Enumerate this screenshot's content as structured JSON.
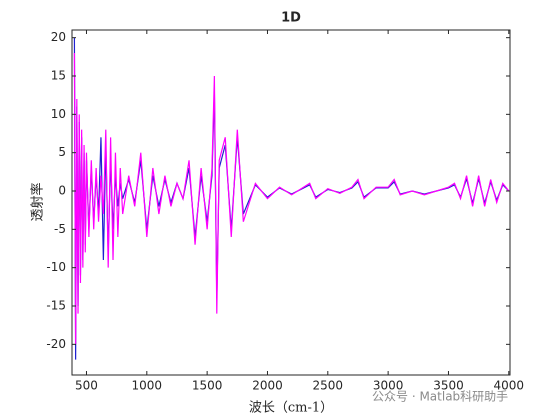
{
  "chart_data": {
    "type": "line",
    "title": "1D",
    "x_label": "波长（cm-1）",
    "y_label": "透射率",
    "watermark": "公众号 · Matlab科研助手",
    "x": [
      400,
      410,
      420,
      430,
      440,
      450,
      460,
      470,
      480,
      490,
      500,
      520,
      540,
      560,
      580,
      600,
      620,
      640,
      660,
      680,
      700,
      720,
      740,
      760,
      780,
      800,
      850,
      900,
      950,
      1000,
      1050,
      1100,
      1150,
      1200,
      1250,
      1300,
      1350,
      1400,
      1450,
      1500,
      1540,
      1560,
      1580,
      1600,
      1650,
      1700,
      1750,
      1800,
      1900,
      2000,
      2100,
      2200,
      2300,
      2350,
      2400,
      2500,
      2600,
      2700,
      2750,
      2800,
      2900,
      3000,
      3050,
      3100,
      3200,
      3300,
      3400,
      3500,
      3550,
      3600,
      3650,
      3700,
      3750,
      3800,
      3850,
      3900,
      3950,
      4000
    ],
    "series": [
      {
        "color": "#2020d0",
        "values": [
          20,
          -22,
          11,
          -15,
          9,
          -11,
          7,
          -9,
          5,
          -7,
          4,
          -5,
          3,
          -4,
          2,
          -3,
          7,
          -9,
          6,
          -8,
          4,
          -5,
          2,
          -2,
          1,
          -1,
          1.5,
          -1.5,
          4,
          -5,
          2,
          -2,
          1.5,
          -1.5,
          1,
          -1,
          3,
          -6,
          2,
          -4,
          2,
          13,
          -14,
          3,
          6,
          -5,
          7,
          -3,
          0.8,
          -0.8,
          0.4,
          -0.4,
          0.4,
          0.8,
          -0.8,
          0.2,
          -0.2,
          0.4,
          1.2,
          -0.8,
          0.4,
          0.4,
          1.2,
          -0.4,
          0,
          -0.4,
          0,
          0.4,
          0.8,
          -0.8,
          1.6,
          -1.6,
          1.6,
          -1.6,
          1.2,
          -1.2,
          0.8,
          0
        ]
      },
      {
        "color": "#ff00ff",
        "values": [
          18,
          -20,
          12,
          -16,
          10,
          -12,
          8,
          -10,
          6,
          -8,
          5,
          -6,
          4,
          -5,
          3,
          -4,
          2,
          -3,
          8,
          -10,
          7,
          -9,
          5,
          -6,
          3,
          -3,
          2,
          -2,
          5,
          -6,
          3,
          -3,
          2,
          -2,
          1,
          -1,
          4,
          -7,
          3,
          -5,
          3,
          15,
          -16,
          4,
          7,
          -6,
          8,
          -4,
          1,
          -1,
          0.5,
          -0.5,
          0.5,
          1,
          -1,
          0.3,
          -0.3,
          0.5,
          1.5,
          -1,
          0.5,
          0.5,
          1.5,
          -0.5,
          0,
          -0.5,
          0,
          0.5,
          1,
          -1,
          2,
          -2,
          2,
          -2,
          1.5,
          -1.5,
          1,
          0
        ]
      }
    ],
    "xlim": [
      380,
      4010
    ],
    "ylim": [
      -24,
      21
    ],
    "xticks": [
      500,
      1000,
      1500,
      2000,
      2500,
      3000,
      3500,
      4000
    ],
    "yticks": [
      -20,
      -15,
      -10,
      -5,
      0,
      5,
      10,
      15,
      20
    ],
    "grid": false
  }
}
